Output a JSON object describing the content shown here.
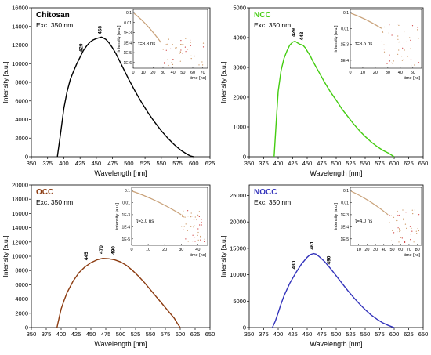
{
  "chart_data": [
    {
      "type": "line",
      "title": "Chitosan",
      "title_color": "#000000",
      "subtitle": "Exc. 350 nm",
      "xlabel": "Wavelength [nm]",
      "ylabel": "Intensity [a.u.]",
      "xlim": [
        350,
        625
      ],
      "ylim": [
        0,
        16000
      ],
      "xticks": [
        350,
        375,
        400,
        425,
        450,
        475,
        500,
        525,
        550,
        575,
        600,
        625
      ],
      "yticks": [
        0,
        2000,
        4000,
        6000,
        8000,
        10000,
        12000,
        14000,
        16000
      ],
      "color": "#000000",
      "series": [
        {
          "x": [
            390,
            395,
            400,
            405,
            410,
            415,
            420,
            425,
            430,
            435,
            440,
            445,
            450,
            455,
            458,
            460,
            465,
            470,
            475,
            480,
            490,
            500,
            510,
            520,
            530,
            540,
            550,
            560,
            570,
            580,
            590,
            595,
            600
          ],
          "y": [
            0,
            2500,
            5200,
            7000,
            8300,
            9200,
            10000,
            10700,
            11400,
            11900,
            12300,
            12550,
            12700,
            12800,
            12850,
            12800,
            12600,
            12200,
            11700,
            11100,
            9700,
            8300,
            7000,
            5800,
            4700,
            3700,
            2800,
            2000,
            1300,
            700,
            250,
            80,
            0
          ]
        }
      ],
      "peak_labels": [
        {
          "x": 429,
          "y": 11000,
          "label": "429"
        },
        {
          "x": 458,
          "y": 12900,
          "label": "458"
        }
      ],
      "inset": {
        "ylabel": "intensity [a.u.]",
        "xlabel": "time [ns]",
        "yticks": [
          "0.1",
          "0.01",
          "1E-3",
          "1E-4",
          "1E-5",
          "1E-6"
        ],
        "xticks": [
          0,
          10,
          20,
          30,
          40,
          50,
          60,
          70
        ],
        "xlim": [
          0,
          75
        ],
        "decay_end": 28,
        "annotation": "τ=3.3 ns"
      }
    },
    {
      "type": "line",
      "title": "NCC",
      "title_color": "#44cc11",
      "subtitle": "Exc. 350 nm",
      "xlabel": "Wavelength [nm]",
      "ylabel": "Intensity [a.u.]",
      "xlim": [
        350,
        650
      ],
      "ylim": [
        0,
        5000
      ],
      "xticks": [
        350,
        375,
        400,
        425,
        450,
        475,
        500,
        525,
        550,
        575,
        600,
        625,
        650
      ],
      "yticks": [
        0,
        1000,
        2000,
        3000,
        4000,
        5000
      ],
      "color": "#44cc11",
      "series": [
        {
          "x": [
            393,
            397,
            400,
            405,
            410,
            415,
            420,
            425,
            429,
            433,
            437,
            440,
            443,
            447,
            450,
            455,
            460,
            470,
            480,
            490,
            500,
            510,
            520,
            530,
            540,
            550,
            560,
            570,
            580,
            590,
            595,
            600
          ],
          "y": [
            0,
            1300,
            2200,
            2900,
            3300,
            3550,
            3750,
            3850,
            3880,
            3830,
            3780,
            3760,
            3740,
            3650,
            3550,
            3400,
            3200,
            2850,
            2500,
            2180,
            1900,
            1600,
            1350,
            1100,
            880,
            680,
            500,
            350,
            220,
            120,
            60,
            0
          ]
        }
      ],
      "peak_labels": [
        {
          "x": 429,
          "y": 3950,
          "label": "429"
        },
        {
          "x": 443,
          "y": 3830,
          "label": "443"
        }
      ],
      "inset": {
        "ylabel": "intensity [a.u.]",
        "xlabel": "time [ns]",
        "yticks": [
          "0.1",
          "0.01",
          "1E-3",
          "1E-4"
        ],
        "xticks": [
          0,
          10,
          20,
          30,
          40,
          50
        ],
        "xlim": [
          0,
          57
        ],
        "decay_end": 25,
        "annotation": "τ=3.5 ns"
      }
    },
    {
      "type": "line",
      "title": "OCC",
      "title_color": "#8b3a0f",
      "subtitle": "Exc. 350 nm",
      "xlabel": "Wavelength [nm]",
      "ylabel": "Intensity [a.u.]",
      "xlim": [
        350,
        650
      ],
      "ylim": [
        0,
        20000
      ],
      "xticks": [
        350,
        375,
        400,
        425,
        450,
        475,
        500,
        525,
        550,
        575,
        600,
        625,
        650
      ],
      "yticks": [
        0,
        2000,
        4000,
        6000,
        8000,
        10000,
        12000,
        14000,
        16000,
        18000,
        20000
      ],
      "color": "#8b3a0f",
      "series": [
        {
          "x": [
            393,
            397,
            400,
            405,
            410,
            420,
            430,
            440,
            445,
            450,
            460,
            470,
            480,
            490,
            500,
            510,
            520,
            530,
            540,
            550,
            560,
            570,
            580,
            590,
            595,
            600
          ],
          "y": [
            0,
            1500,
            2600,
            3800,
            4900,
            6500,
            7700,
            8500,
            8800,
            9100,
            9500,
            9700,
            9650,
            9500,
            9200,
            8700,
            8000,
            7200,
            6300,
            5300,
            4300,
            3300,
            2300,
            1300,
            600,
            0
          ]
        }
      ],
      "peak_labels": [
        {
          "x": 445,
          "y": 9100,
          "label": "445"
        },
        {
          "x": 470,
          "y": 10000,
          "label": "470"
        },
        {
          "x": 490,
          "y": 9900,
          "label": "490"
        }
      ],
      "inset": {
        "ylabel": "intensity [a.u.]",
        "xlabel": "time [ns]",
        "yticks": [
          "0.1",
          "0.01",
          "1E-3",
          "1E-4",
          "1E-5"
        ],
        "xticks": [
          0,
          10,
          20,
          30,
          40
        ],
        "xlim": [
          0,
          46
        ],
        "decay_end": 30,
        "annotation": "τ=3.0 ns"
      }
    },
    {
      "type": "line",
      "title": "NOCC",
      "title_color": "#3333bb",
      "subtitle": "Exc. 350 nm",
      "xlabel": "Wavelength [nm]",
      "ylabel": "Intensity [a.u.]",
      "xlim": [
        350,
        650
      ],
      "ylim": [
        0,
        27000
      ],
      "xticks": [
        350,
        375,
        400,
        425,
        450,
        475,
        500,
        525,
        550,
        575,
        600,
        625,
        650
      ],
      "yticks": [
        0,
        5000,
        10000,
        15000,
        20000,
        25000
      ],
      "color": "#3333bb",
      "series": [
        {
          "x": [
            390,
            395,
            400,
            405,
            410,
            420,
            430,
            440,
            450,
            455,
            461,
            465,
            470,
            480,
            490,
            500,
            510,
            520,
            530,
            540,
            550,
            560,
            570,
            580,
            590,
            600
          ],
          "y": [
            0,
            1200,
            2800,
            4500,
            6000,
            8400,
            10300,
            12000,
            13300,
            13800,
            14000,
            13900,
            13500,
            12500,
            11200,
            9800,
            8400,
            7000,
            5700,
            4500,
            3400,
            2400,
            1600,
            900,
            400,
            0
          ]
        }
      ],
      "peak_labels": [
        {
          "x": 430,
          "y": 10600,
          "label": "430"
        },
        {
          "x": 461,
          "y": 14300,
          "label": "461"
        },
        {
          "x": 490,
          "y": 11500,
          "label": "490"
        }
      ],
      "inset": {
        "ylabel": "intensity [a.u.]",
        "xlabel": "time [ns]",
        "yticks": [
          "0.1",
          "0.01",
          "1E-3",
          "1E-4",
          "1E-5"
        ],
        "xticks": [
          10,
          20,
          30,
          40,
          50,
          60,
          70,
          80
        ],
        "xlim": [
          0,
          85
        ],
        "decay_end": 45,
        "annotation": "τ=4.0 ns"
      }
    }
  ]
}
